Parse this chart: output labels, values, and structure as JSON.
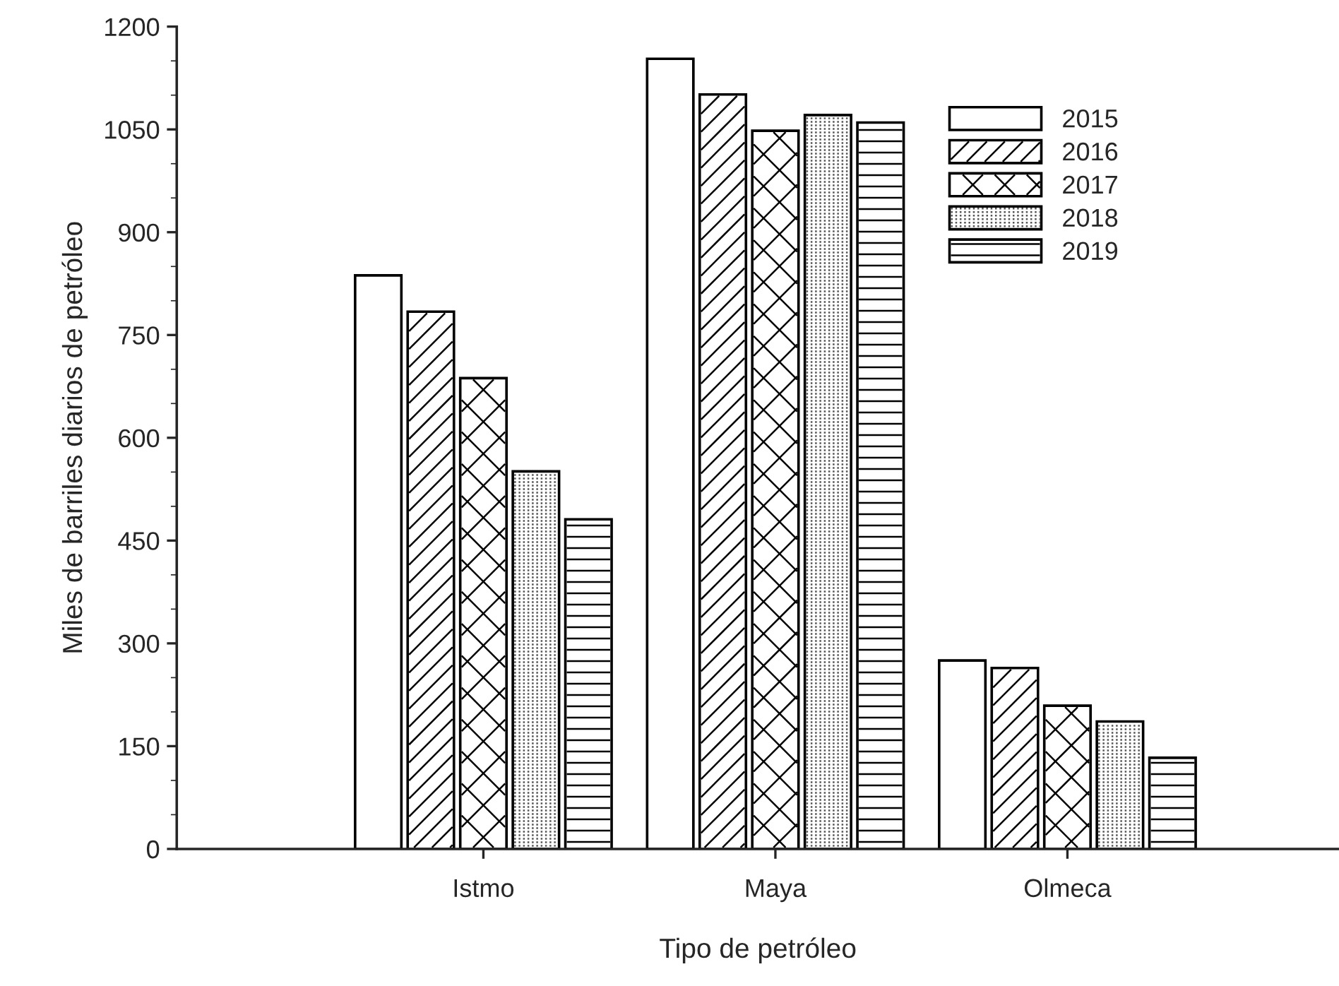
{
  "chart_data": {
    "type": "bar",
    "xlabel": "Tipo de petróleo",
    "ylabel": "Miles de barriles diarios de petróleo",
    "categories": [
      "Istmo",
      "Maya",
      "Olmeca"
    ],
    "series": [
      {
        "name": "2015",
        "color": "#ffffff",
        "values": [
          837,
          1153,
          275
        ]
      },
      {
        "name": "2016",
        "color": "#ffffff",
        "values": [
          784,
          1101,
          264
        ]
      },
      {
        "name": "2017",
        "color": "#ffffff",
        "values": [
          687,
          1048,
          209
        ]
      },
      {
        "name": "2018",
        "color": "#ffffff",
        "values": [
          551,
          1071,
          186
        ]
      },
      {
        "name": "2019",
        "color": "#ffffff",
        "values": [
          481,
          1060,
          133
        ]
      }
    ],
    "ylim": [
      0,
      1200
    ],
    "yticks": [
      0,
      150,
      300,
      450,
      600,
      750,
      900,
      1050,
      1200
    ],
    "legend": "top right",
    "grid": false
  }
}
